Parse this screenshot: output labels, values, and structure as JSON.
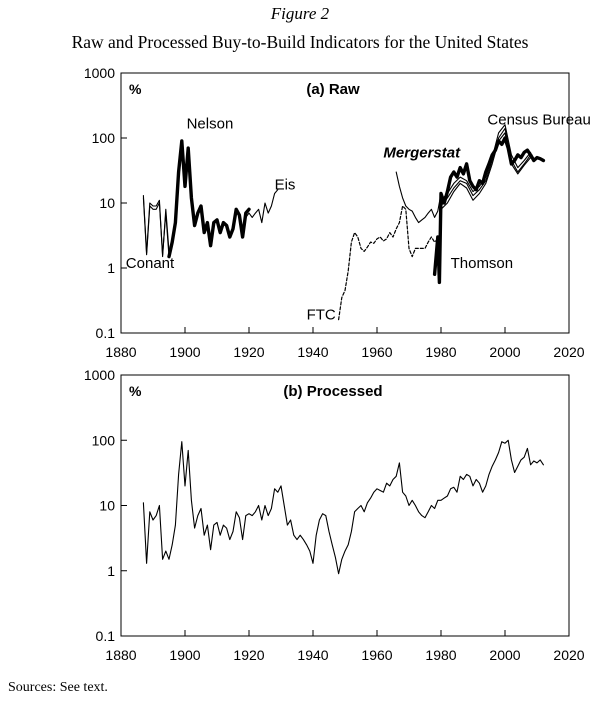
{
  "figure": {
    "label": "Figure 2",
    "title": "Raw and Processed Buy-to-Build Indicators for the United States",
    "sources": "Sources: See text."
  },
  "chart_data": [
    {
      "type": "line",
      "title": "(a) Raw",
      "ylabel": "%",
      "yscale": "log",
      "xlim": [
        1880,
        2020
      ],
      "ylim": [
        0.1,
        1000
      ],
      "xticks": [
        1880,
        1900,
        1920,
        1940,
        1960,
        1980,
        2000,
        2020
      ],
      "yticks": [
        "0.1",
        "1",
        "10",
        "100",
        "1000"
      ],
      "grid": false,
      "legend": "none",
      "annotations": [
        {
          "text": "Nelson",
          "x": 1900.5,
          "y": 140
        },
        {
          "text": "Eis",
          "x": 1928,
          "y": 16
        },
        {
          "text": "Conant",
          "x": 1881.5,
          "y": 1
        },
        {
          "text": "Mergerstat",
          "x": 1962,
          "y": 50,
          "italic": true
        },
        {
          "text": "Census Bureau",
          "x": 1994.5,
          "y": 160
        },
        {
          "text": "Thomson",
          "x": 1983,
          "y": 1
        },
        {
          "text": "FTC",
          "x": 1938,
          "y": 0.16
        }
      ],
      "series": [
        {
          "name": "Conant",
          "style": "thin",
          "x": [
            1887,
            1888,
            1889,
            1890,
            1891,
            1892,
            1893,
            1894,
            1895
          ],
          "y": [
            13,
            1.7,
            10,
            9,
            9,
            11,
            1.5,
            8,
            1.8
          ]
        },
        {
          "name": "Conant",
          "style": "thin",
          "x": [
            1887,
            1888,
            1889,
            1890,
            1891,
            1892,
            1893,
            1894,
            1895
          ],
          "y": [
            12,
            1.6,
            9,
            8,
            8,
            10,
            1.6,
            7,
            1.5
          ]
        },
        {
          "name": "Nelson",
          "style": "bold",
          "x": [
            1895,
            1896,
            1897,
            1898,
            1899,
            1900,
            1901,
            1902,
            1903,
            1904,
            1905,
            1906,
            1907,
            1908,
            1909,
            1910,
            1911,
            1912,
            1913,
            1914,
            1915,
            1916,
            1917,
            1918,
            1919,
            1920
          ],
          "y": [
            1.5,
            2.5,
            5,
            30,
            90,
            18,
            70,
            12,
            4.5,
            7,
            9,
            3.5,
            5,
            2.2,
            5,
            5.5,
            3.5,
            5,
            4.5,
            3,
            4,
            8,
            6.5,
            3,
            7,
            8
          ]
        },
        {
          "name": "Eis",
          "style": "thin",
          "x": [
            1919,
            1920,
            1921,
            1922,
            1923,
            1924,
            1925,
            1926,
            1927,
            1928,
            1929
          ],
          "y": [
            6,
            7,
            6,
            7,
            8,
            5,
            10,
            7,
            9,
            14,
            16
          ]
        },
        {
          "name": "FTC",
          "style": "dashed",
          "x": [
            1948,
            1949,
            1950,
            1951,
            1952,
            1953,
            1954,
            1955,
            1956,
            1957,
            1958,
            1959,
            1960,
            1961,
            1962,
            1963,
            1964,
            1965,
            1966,
            1967,
            1968,
            1969,
            1970,
            1971,
            1972,
            1973,
            1974,
            1975,
            1976,
            1977,
            1978,
            1979
          ],
          "y": [
            0.16,
            0.35,
            0.45,
            0.9,
            2.5,
            3.5,
            3,
            2,
            1.8,
            2.1,
            2.5,
            2.4,
            2.8,
            3,
            2.6,
            2.8,
            3.5,
            3,
            4,
            5,
            9,
            8,
            2,
            1.5,
            2,
            2,
            2,
            2,
            2.5,
            3,
            2.5,
            2.8
          ]
        },
        {
          "name": "Mergerstat",
          "style": "thin",
          "x": [
            1966,
            1967,
            1968,
            1969,
            1970,
            1971,
            1972,
            1973,
            1974,
            1975,
            1976,
            1977,
            1978,
            1979,
            1980
          ],
          "y": [
            30,
            18,
            12,
            9,
            8,
            7.5,
            6,
            5,
            5.5,
            6,
            7,
            8,
            6,
            7.5,
            14
          ]
        },
        {
          "name": "Thomson",
          "style": "bold",
          "x": [
            1978,
            1979,
            1979.5,
            1980,
            1981,
            1982,
            1983,
            1984,
            1985,
            1986,
            1987,
            1988,
            1989,
            1990,
            1991,
            1992,
            1993,
            1994,
            1995,
            1996,
            1997,
            1998,
            1999,
            2000,
            2001,
            2002,
            2003,
            2004,
            2005,
            2006,
            2007,
            2008,
            2009,
            2010,
            2011,
            2012
          ],
          "y": [
            0.8,
            3,
            0.6,
            14,
            10,
            15,
            25,
            30,
            25,
            35,
            28,
            40,
            22,
            18,
            16,
            22,
            20,
            30,
            40,
            55,
            65,
            90,
            80,
            100,
            70,
            40,
            45,
            55,
            50,
            60,
            65,
            55,
            45,
            50,
            48,
            45
          ]
        },
        {
          "name": "Census Bureau",
          "style": "thin",
          "x": [
            1980,
            1982,
            1984,
            1986,
            1988,
            1990,
            1992,
            1994,
            1996,
            1998,
            2000,
            2002,
            2004,
            2006,
            2008
          ],
          "y": [
            11,
            14,
            20,
            25,
            22,
            15,
            18,
            25,
            50,
            120,
            160,
            55,
            35,
            45,
            60
          ]
        },
        {
          "name": "Census Bureau",
          "style": "thin",
          "x": [
            1980,
            1982,
            1984,
            1986,
            1988,
            1990,
            1992,
            1994,
            1996,
            1998,
            2000,
            2002,
            2004,
            2006,
            2008
          ],
          "y": [
            9,
            12,
            17,
            22,
            20,
            13,
            16,
            22,
            45,
            100,
            140,
            45,
            30,
            40,
            55
          ]
        },
        {
          "name": "Census Bureau",
          "style": "thin",
          "x": [
            1980,
            1982,
            1984,
            1986,
            1988,
            1990,
            1992,
            1994,
            1996,
            1998,
            2000,
            2002,
            2004,
            2006,
            2008
          ],
          "y": [
            8,
            10,
            15,
            20,
            17,
            11,
            14,
            20,
            40,
            90,
            120,
            40,
            28,
            38,
            50
          ]
        }
      ]
    },
    {
      "type": "line",
      "title": "(b) Processed",
      "ylabel": "%",
      "yscale": "log",
      "xlim": [
        1880,
        2020
      ],
      "ylim": [
        0.1,
        1000
      ],
      "xticks": [
        1880,
        1900,
        1920,
        1940,
        1960,
        1980,
        2000,
        2020
      ],
      "yticks": [
        "0.1",
        "1",
        "10",
        "100",
        "1000"
      ],
      "grid": false,
      "legend": "none",
      "series": [
        {
          "style": "thin",
          "x": [
            1887,
            1888,
            1889,
            1890,
            1891,
            1892,
            1893,
            1894,
            1895,
            1896,
            1897,
            1898,
            1899,
            1900,
            1901,
            1902,
            1903,
            1904,
            1905,
            1906,
            1907,
            1908,
            1909,
            1910,
            1911,
            1912,
            1913,
            1914,
            1915,
            1916,
            1917,
            1918,
            1919,
            1920,
            1921,
            1922,
            1923,
            1924,
            1925,
            1926,
            1927,
            1928,
            1929,
            1930,
            1931,
            1932,
            1933,
            1934,
            1935,
            1936,
            1937,
            1938,
            1939,
            1940,
            1941,
            1942,
            1943,
            1944,
            1945,
            1946,
            1947,
            1948,
            1949,
            1950,
            1951,
            1952,
            1953,
            1954,
            1955,
            1956,
            1957,
            1958,
            1959,
            1960,
            1961,
            1962,
            1963,
            1964,
            1965,
            1966,
            1967,
            1968,
            1969,
            1970,
            1971,
            1972,
            1973,
            1974,
            1975,
            1976,
            1977,
            1978,
            1979,
            1980,
            1981,
            1982,
            1983,
            1984,
            1985,
            1986,
            1987,
            1988,
            1989,
            1990,
            1991,
            1992,
            1993,
            1994,
            1995,
            1996,
            1997,
            1998,
            1999,
            2000,
            2001,
            2002,
            2003,
            2004,
            2005,
            2006,
            2007,
            2008,
            2009,
            2010,
            2011,
            2012
          ],
          "y": [
            11,
            1.3,
            8,
            6,
            7,
            10,
            1.5,
            2,
            1.5,
            2.5,
            5,
            30,
            95,
            20,
            70,
            12,
            4.5,
            7,
            9,
            3.5,
            5,
            2.1,
            5,
            5.5,
            3.5,
            5,
            4.5,
            3,
            4,
            8,
            6.5,
            3,
            7,
            7.5,
            7,
            8,
            10,
            6,
            10,
            7,
            9,
            18,
            16,
            20,
            10,
            5,
            6,
            3.5,
            3,
            3.5,
            3,
            2.5,
            2,
            1.3,
            3.5,
            6,
            7.5,
            7,
            4,
            2.5,
            1.6,
            0.9,
            1.5,
            2,
            2.5,
            4,
            8,
            9,
            10,
            8,
            11,
            13,
            16,
            18,
            17,
            16,
            22,
            20,
            25,
            28,
            45,
            16,
            14,
            10,
            12,
            10,
            8,
            7,
            6.5,
            8,
            10,
            9,
            12,
            12,
            13,
            14,
            18,
            19,
            16,
            28,
            25,
            30,
            28,
            20,
            25,
            22,
            16,
            20,
            30,
            40,
            50,
            65,
            95,
            90,
            100,
            50,
            32,
            40,
            50,
            55,
            75,
            42,
            48,
            45,
            50,
            42
          ]
        }
      ]
    }
  ]
}
